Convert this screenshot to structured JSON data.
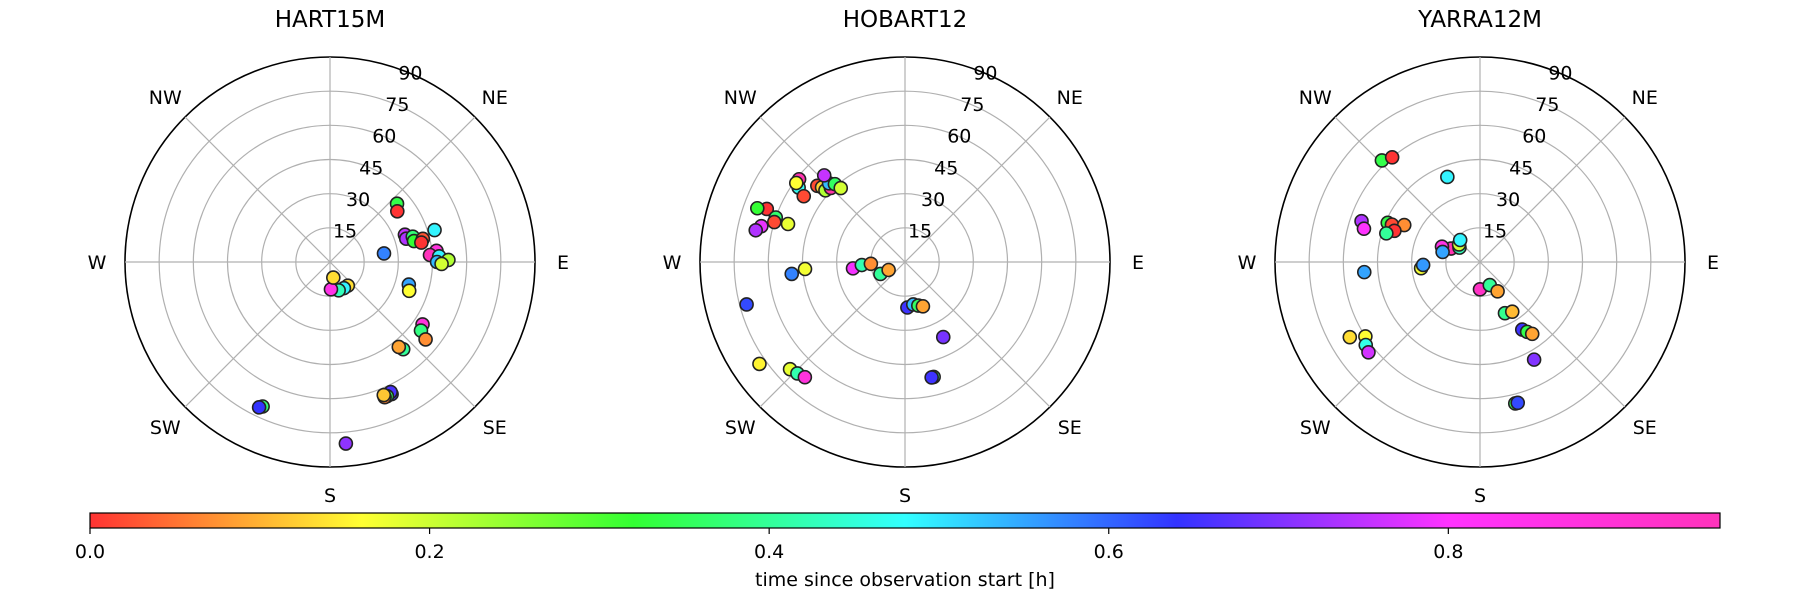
{
  "chart_data": [
    {
      "type": "scatter",
      "projection": "polar",
      "title": "HART15M",
      "theta_direction": "clockwise",
      "theta_zero": "N",
      "direction_labels": {
        "NE": "NE",
        "E": "E",
        "SE": "SE",
        "S": "S",
        "SW": "SW",
        "W": "W",
        "NW": "NW"
      },
      "r_ticks": [
        "15",
        "30",
        "45",
        "60",
        "75",
        "90"
      ],
      "r_range": [
        0,
        90
      ],
      "points": [
        {
          "az": 49,
          "el": 39,
          "t": 0.38
        },
        {
          "az": 53,
          "el": 37,
          "t": 0.0
        },
        {
          "az": 73,
          "el": 48,
          "t": 0.55
        },
        {
          "az": 70,
          "el": 35,
          "t": 0.85
        },
        {
          "az": 73,
          "el": 35,
          "t": 0.83
        },
        {
          "az": 73,
          "el": 38,
          "t": 0.42
        },
        {
          "az": 76,
          "el": 38,
          "t": 0.36
        },
        {
          "az": 76,
          "el": 42,
          "t": 0.03
        },
        {
          "az": 78,
          "el": 41,
          "t": 0.0
        },
        {
          "az": 81,
          "el": 24,
          "t": 0.65
        },
        {
          "az": 84,
          "el": 47,
          "t": 0.93
        },
        {
          "az": 86,
          "el": 44,
          "t": 0.96
        },
        {
          "az": 87,
          "el": 48,
          "t": 0.55
        },
        {
          "az": 89,
          "el": 52,
          "t": 0.25
        },
        {
          "az": 90,
          "el": 47,
          "t": 0.6
        },
        {
          "az": 91,
          "el": 49,
          "t": 0.22
        },
        {
          "az": 106,
          "el": 36,
          "t": 0.62
        },
        {
          "az": 110,
          "el": 37,
          "t": 0.18
        },
        {
          "az": 124,
          "el": 49,
          "t": 0.93
        },
        {
          "az": 127,
          "el": 50,
          "t": 0.43
        },
        {
          "az": 129,
          "el": 54,
          "t": 0.08
        },
        {
          "az": 140,
          "el": 50,
          "t": 0.45
        },
        {
          "az": 141,
          "el": 48,
          "t": 0.1
        },
        {
          "az": 155,
          "el": 64,
          "t": 0.73
        },
        {
          "az": 155,
          "el": 63,
          "t": 0.74
        },
        {
          "az": 157,
          "el": 64,
          "t": 0.4
        },
        {
          "az": 158,
          "el": 64,
          "t": 0.07
        },
        {
          "az": 158,
          "el": 63,
          "t": 0.13
        },
        {
          "az": 175,
          "el": 80,
          "t": 0.8
        },
        {
          "az": 205,
          "el": 70,
          "t": 0.42
        },
        {
          "az": 206,
          "el": 71,
          "t": 0.72
        },
        {
          "az": 143,
          "el": 13,
          "t": 0.15
        },
        {
          "az": 152,
          "el": 13,
          "t": 0.55
        },
        {
          "az": 163,
          "el": 13,
          "t": 0.48
        },
        {
          "az": 178,
          "el": 12,
          "t": 0.92
        },
        {
          "az": 168,
          "el": 7,
          "t": 0.15
        }
      ]
    },
    {
      "type": "scatter",
      "projection": "polar",
      "title": "HOBART12",
      "theta_direction": "clockwise",
      "theta_zero": "N",
      "direction_labels": {
        "NW": "NW",
        "NE": "NE",
        "E": "E",
        "SE": "SE",
        "S": "S",
        "SW": "SW",
        "W": "W"
      },
      "r_ticks": [
        "15",
        "30",
        "45",
        "60",
        "75",
        "90"
      ],
      "r_range": [
        0,
        90
      ],
      "points": [
        {
          "az": 308,
          "el": 59,
          "t": 0.97
        },
        {
          "az": 305,
          "el": 57,
          "t": 0.53
        },
        {
          "az": 311,
          "el": 51,
          "t": 0.02
        },
        {
          "az": 312,
          "el": 49,
          "t": 0.14
        },
        {
          "az": 312,
          "el": 47,
          "t": 0.25
        },
        {
          "az": 315,
          "el": 46,
          "t": 0.98
        },
        {
          "az": 316,
          "el": 48,
          "t": 0.6
        },
        {
          "az": 318,
          "el": 46,
          "t": 0.4
        },
        {
          "az": 319,
          "el": 43,
          "t": 0.22
        },
        {
          "az": 303,
          "el": 53,
          "t": 0.02
        },
        {
          "az": 306,
          "el": 59,
          "t": 0.18
        },
        {
          "az": 317,
          "el": 52,
          "t": 0.85
        },
        {
          "az": 291,
          "el": 65,
          "t": 0.0
        },
        {
          "az": 290,
          "el": 69,
          "t": 0.36
        },
        {
          "az": 289,
          "el": 60,
          "t": 0.41
        },
        {
          "az": 287,
          "el": 60,
          "t": 0.02
        },
        {
          "az": 288,
          "el": 54,
          "t": 0.2
        },
        {
          "az": 284,
          "el": 65,
          "t": 0.88
        },
        {
          "az": 282,
          "el": 67,
          "t": 0.83
        },
        {
          "az": 266,
          "el": 44,
          "t": 0.19
        },
        {
          "az": 264,
          "el": 50,
          "t": 0.65
        },
        {
          "az": 255,
          "el": 72,
          "t": 0.7
        },
        {
          "az": 235,
          "el": 78,
          "t": 0.17
        },
        {
          "az": 227,
          "el": 69,
          "t": 0.2
        },
        {
          "az": 224,
          "el": 68,
          "t": 0.47
        },
        {
          "az": 221,
          "el": 67,
          "t": 0.93
        },
        {
          "az": 263,
          "el": 23,
          "t": 0.89
        },
        {
          "az": 266,
          "el": 19,
          "t": 0.47
        },
        {
          "az": 267,
          "el": 15,
          "t": 0.08
        },
        {
          "az": 244,
          "el": 12,
          "t": 0.45
        },
        {
          "az": 244,
          "el": 8,
          "t": 0.1
        },
        {
          "az": 177,
          "el": 20,
          "t": 0.73
        },
        {
          "az": 169,
          "el": 19,
          "t": 0.6
        },
        {
          "az": 163,
          "el": 20,
          "t": 0.4
        },
        {
          "az": 158,
          "el": 21,
          "t": 0.1
        },
        {
          "az": 153,
          "el": 37,
          "t": 0.78
        },
        {
          "az": 166,
          "el": 52,
          "t": 0.45
        },
        {
          "az": 167,
          "el": 52,
          "t": 0.73
        }
      ]
    },
    {
      "type": "scatter",
      "projection": "polar",
      "title": "YARRA12M",
      "theta_direction": "clockwise",
      "theta_zero": "N",
      "direction_labels": {
        "NW": "NW",
        "NE": "NE",
        "E": "E",
        "SE": "SE",
        "S": "S",
        "SW": "SW",
        "W": "W"
      },
      "r_ticks": [
        "15",
        "30",
        "45",
        "60",
        "75",
        "90"
      ],
      "r_range": [
        0,
        90
      ],
      "points": [
        {
          "az": 316,
          "el": 62,
          "t": 0.38
        },
        {
          "az": 320,
          "el": 60,
          "t": 0.0
        },
        {
          "az": 293,
          "el": 44,
          "t": 0.38
        },
        {
          "az": 293,
          "el": 42,
          "t": 0.02
        },
        {
          "az": 296,
          "el": 37,
          "t": 0.08
        },
        {
          "az": 290,
          "el": 40,
          "t": 0.0
        },
        {
          "az": 287,
          "el": 43,
          "t": 0.45
        },
        {
          "az": 289,
          "el": 55,
          "t": 0.83
        },
        {
          "az": 286,
          "el": 53,
          "t": 0.9
        },
        {
          "az": 339,
          "el": 40,
          "t": 0.55
        },
        {
          "az": 295,
          "el": 14,
          "t": 0.97
        },
        {
          "az": 305,
          "el": 11,
          "t": 0.48
        },
        {
          "az": 310,
          "el": 12,
          "t": 0.22
        },
        {
          "az": 318,
          "el": 13,
          "t": 0.55
        },
        {
          "az": 292,
          "el": 18,
          "t": 0.92
        },
        {
          "az": 285,
          "el": 17,
          "t": 0.62
        },
        {
          "az": 265,
          "el": 51,
          "t": 0.62
        },
        {
          "az": 264,
          "el": 26,
          "t": 0.19
        },
        {
          "az": 267,
          "el": 25,
          "t": 0.63
        },
        {
          "az": 240,
          "el": 66,
          "t": 0.15
        },
        {
          "az": 237,
          "el": 60,
          "t": 0.18
        },
        {
          "az": 234,
          "el": 62,
          "t": 0.52
        },
        {
          "az": 231,
          "el": 63,
          "t": 0.86
        },
        {
          "az": 180,
          "el": 12,
          "t": 0.95
        },
        {
          "az": 157,
          "el": 11,
          "t": 0.45
        },
        {
          "az": 149,
          "el": 15,
          "t": 0.1
        },
        {
          "az": 154,
          "el": 25,
          "t": 0.44
        },
        {
          "az": 147,
          "el": 26,
          "t": 0.12
        },
        {
          "az": 148,
          "el": 35,
          "t": 0.73
        },
        {
          "az": 146,
          "el": 37,
          "t": 0.38
        },
        {
          "az": 144,
          "el": 39,
          "t": 0.1
        },
        {
          "az": 151,
          "el": 49,
          "t": 0.79
        },
        {
          "az": 166,
          "el": 64,
          "t": 0.4
        },
        {
          "az": 165,
          "el": 64,
          "t": 0.7
        }
      ]
    }
  ],
  "colorbar": {
    "label": "time since observation start [h]",
    "range": [
      0,
      0.96
    ],
    "ticks": [
      {
        "value": 0.0,
        "label": "0.0"
      },
      {
        "value": 0.2,
        "label": "0.2"
      },
      {
        "value": 0.4,
        "label": "0.4"
      },
      {
        "value": 0.6,
        "label": "0.6"
      },
      {
        "value": 0.8,
        "label": "0.8"
      }
    ],
    "colormap": "hsv"
  }
}
